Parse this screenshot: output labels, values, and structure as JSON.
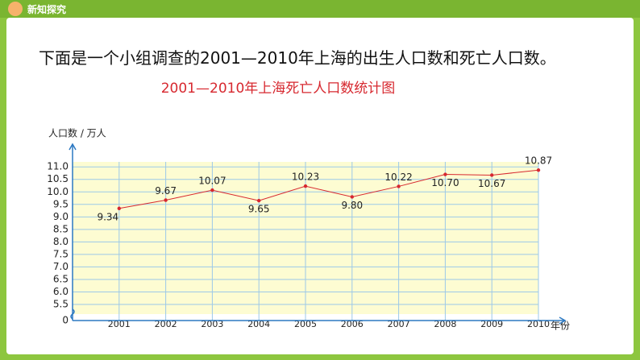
{
  "header": {
    "label": "新知探究"
  },
  "intro": "下面是一个小组调查的2001—2010年上海的出生人口数和死亡人口数。",
  "chart_data": {
    "type": "line",
    "title": "2001—2010年上海死亡人口数统计图",
    "y_label": "人口数 / 万人",
    "x_label": "年份",
    "categories": [
      "2001",
      "2002",
      "2003",
      "2004",
      "2005",
      "2006",
      "2007",
      "2008",
      "2009",
      "2010"
    ],
    "values": [
      9.34,
      9.67,
      10.07,
      9.65,
      10.23,
      9.8,
      10.22,
      10.7,
      10.67,
      10.87
    ],
    "value_labels": [
      "9.34",
      "9.67",
      "10.07",
      "9.65",
      "10.23",
      "9.80",
      "10.22",
      "10.70",
      "10.67",
      "10.87"
    ],
    "color": "#d7282f",
    "ylim": [
      0,
      11.2
    ],
    "axis_break": [
      0,
      5.5
    ],
    "yticks": [
      0,
      5.5,
      {
        "value": 6,
        "label": "6.0"
      },
      6.5,
      {
        "value": 7,
        "label": "7.0"
      },
      7.5,
      {
        "value": 8,
        "label": "8.0"
      },
      8.5,
      {
        "value": 9,
        "label": "9.0"
      },
      9.5,
      {
        "value": 10,
        "label": "10.0"
      },
      10.5,
      {
        "value": 11,
        "label": "11.0"
      }
    ],
    "grid": true
  }
}
